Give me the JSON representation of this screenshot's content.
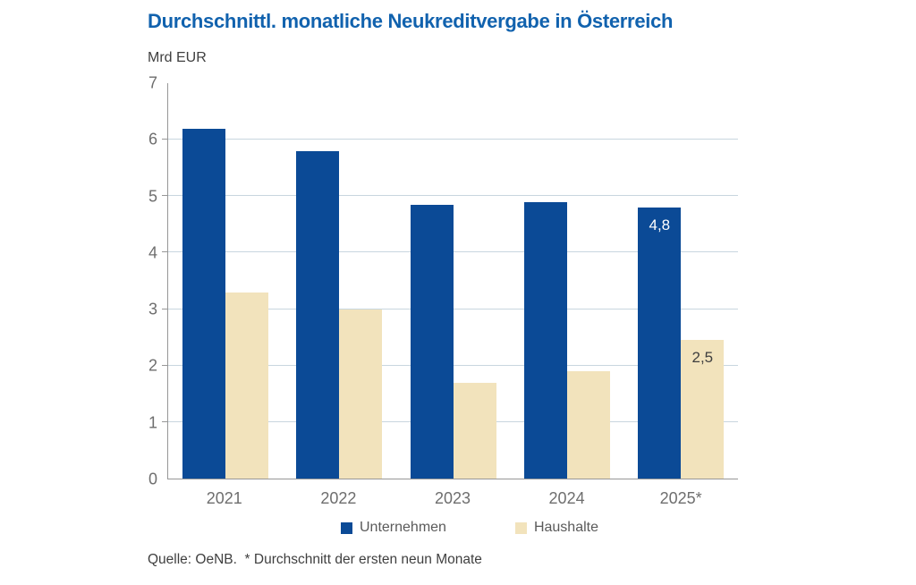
{
  "colors": {
    "background": "#ffffff",
    "title": "#1162ae",
    "grid": "#c8d6df",
    "axis": "#979797",
    "tick_label": "#6e6e6e",
    "text": "#3f3f3f",
    "legend_text": "#5a5a5a"
  },
  "chart_data": {
    "type": "bar",
    "title": "Durchschnittl. monatliche Neukreditvergabe in Österreich",
    "unit_label": "Mrd EUR",
    "categories": [
      "2021",
      "2022",
      "2023",
      "2024",
      "2025*"
    ],
    "series": [
      {
        "name": "Unternehmen",
        "color": "#0b4a96",
        "values": [
          6.2,
          5.8,
          4.85,
          4.9,
          4.8
        ]
      },
      {
        "name": "Haushalte",
        "color": "#f2e3bc",
        "values": [
          3.3,
          3.0,
          1.7,
          1.9,
          2.45
        ]
      }
    ],
    "value_labels": [
      {
        "series_index": 0,
        "category_index": 4,
        "text": "4,8",
        "color": "#ffffff"
      },
      {
        "series_index": 1,
        "category_index": 4,
        "text": "2,5",
        "color": "#3f3f3f"
      }
    ],
    "ylim": [
      0,
      7
    ],
    "yticks": [
      0,
      1,
      2,
      3,
      4,
      5,
      6,
      7
    ],
    "grid": true,
    "legend_position": "bottom",
    "source_note": "Quelle: OeNB.  * Durchschnitt der ersten neun Monate"
  }
}
